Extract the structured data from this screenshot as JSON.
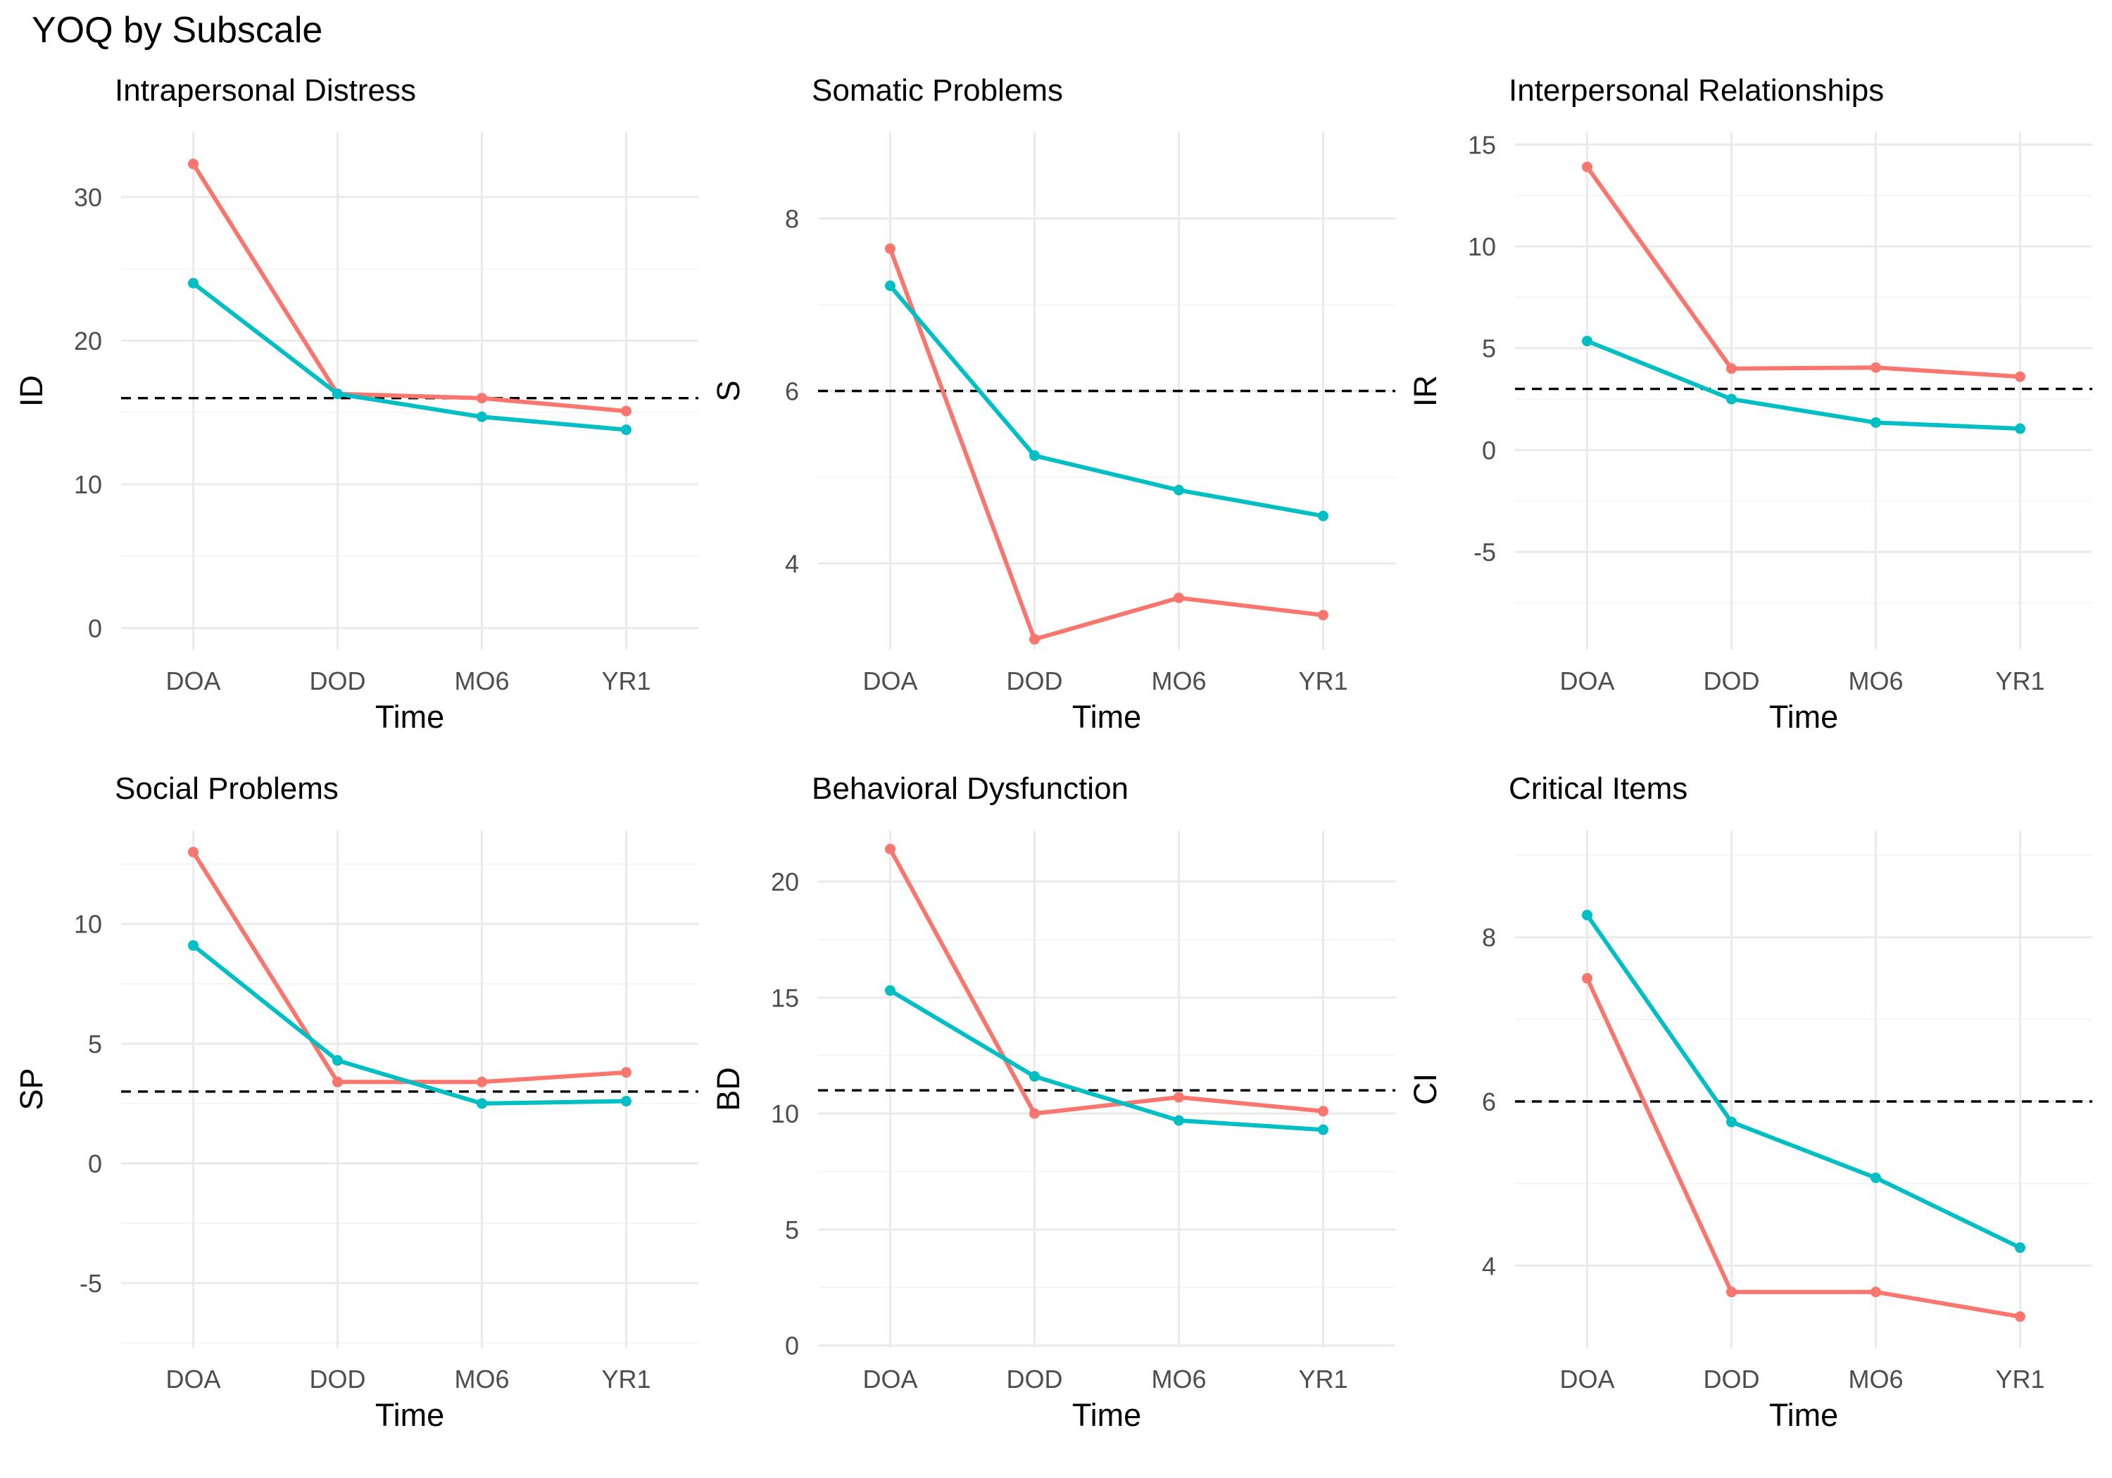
{
  "chart_data": {
    "title": "YOQ by Subscale",
    "type": "line",
    "series_colors": [
      "#F8766D",
      "#00BFC4"
    ],
    "reference_line_style": "dashed, black",
    "grid": true,
    "panels": [
      {
        "title": "Intrapersonal Distress",
        "xlabel": "Time",
        "ylabel": "ID",
        "categories": [
          "DOA",
          "DOD",
          "MO6",
          "YR1"
        ],
        "ylim": [
          -1.5,
          34.5
        ],
        "yticks": [
          0,
          10,
          20,
          30
        ],
        "ytick_labels": [
          "0",
          "10",
          "20",
          "30"
        ],
        "reference_line": 16,
        "series": [
          {
            "values": [
              32.3,
              16.3,
              16.0,
              15.1
            ]
          },
          {
            "values": [
              24.0,
              16.3,
              14.7,
              13.8
            ]
          }
        ]
      },
      {
        "title": "Somatic Problems",
        "xlabel": "Time",
        "ylabel": "S",
        "categories": [
          "DOA",
          "DOD",
          "MO6",
          "YR1"
        ],
        "ylim": [
          3.0,
          9.0
        ],
        "yticks": [
          4,
          6,
          8
        ],
        "ytick_labels": [
          "4",
          "6",
          "8"
        ],
        "reference_line": 6,
        "series": [
          {
            "values": [
              7.65,
              3.12,
              3.6,
              3.4
            ]
          },
          {
            "values": [
              7.22,
              5.25,
              4.85,
              4.55
            ]
          }
        ]
      },
      {
        "title": "Interpersonal Relationships",
        "xlabel": "Time",
        "ylabel": "IR",
        "categories": [
          "DOA",
          "DOD",
          "MO6",
          "YR1"
        ],
        "ylim": [
          -9.8,
          15.6
        ],
        "yticks": [
          -5,
          0,
          5,
          10,
          15
        ],
        "ytick_labels": [
          "-5",
          "0",
          "5",
          "10",
          "15"
        ],
        "reference_line": 3,
        "series": [
          {
            "values": [
              13.9,
              4.0,
              4.05,
              3.6
            ]
          },
          {
            "values": [
              5.35,
              2.5,
              1.35,
              1.05
            ]
          }
        ]
      },
      {
        "title": "Social Problems",
        "xlabel": "Time",
        "ylabel": "SP",
        "categories": [
          "DOA",
          "DOD",
          "MO6",
          "YR1"
        ],
        "ylim": [
          -7.7,
          13.9
        ],
        "yticks": [
          -5,
          0,
          5,
          10
        ],
        "ytick_labels": [
          "-5",
          "0",
          "5",
          "10"
        ],
        "reference_line": 3,
        "series": [
          {
            "values": [
              13.0,
              3.4,
              3.4,
              3.8
            ]
          },
          {
            "values": [
              9.1,
              4.3,
              2.5,
              2.6
            ]
          }
        ]
      },
      {
        "title": "Behavioral Dysfunction",
        "xlabel": "Time",
        "ylabel": "BD",
        "categories": [
          "DOA",
          "DOD",
          "MO6",
          "YR1"
        ],
        "ylim": [
          -0.1,
          22.2
        ],
        "yticks": [
          0,
          5,
          10,
          15,
          20
        ],
        "ytick_labels": [
          "0",
          "5",
          "10",
          "15",
          "20"
        ],
        "reference_line": 11,
        "series": [
          {
            "values": [
              21.4,
              10.0,
              10.7,
              10.1
            ]
          },
          {
            "values": [
              15.3,
              11.6,
              9.7,
              9.3
            ]
          }
        ]
      },
      {
        "title": "Critical Items",
        "xlabel": "Time",
        "ylabel": "CI",
        "categories": [
          "DOA",
          "DOD",
          "MO6",
          "YR1"
        ],
        "ylim": [
          3.0,
          9.3
        ],
        "yticks": [
          4,
          6,
          8
        ],
        "ytick_labels": [
          "4",
          "6",
          "8"
        ],
        "reference_line": 6,
        "series": [
          {
            "values": [
              7.5,
              3.68,
              3.68,
              3.38
            ]
          },
          {
            "values": [
              8.27,
              5.75,
              5.07,
              4.22
            ]
          }
        ]
      }
    ]
  }
}
